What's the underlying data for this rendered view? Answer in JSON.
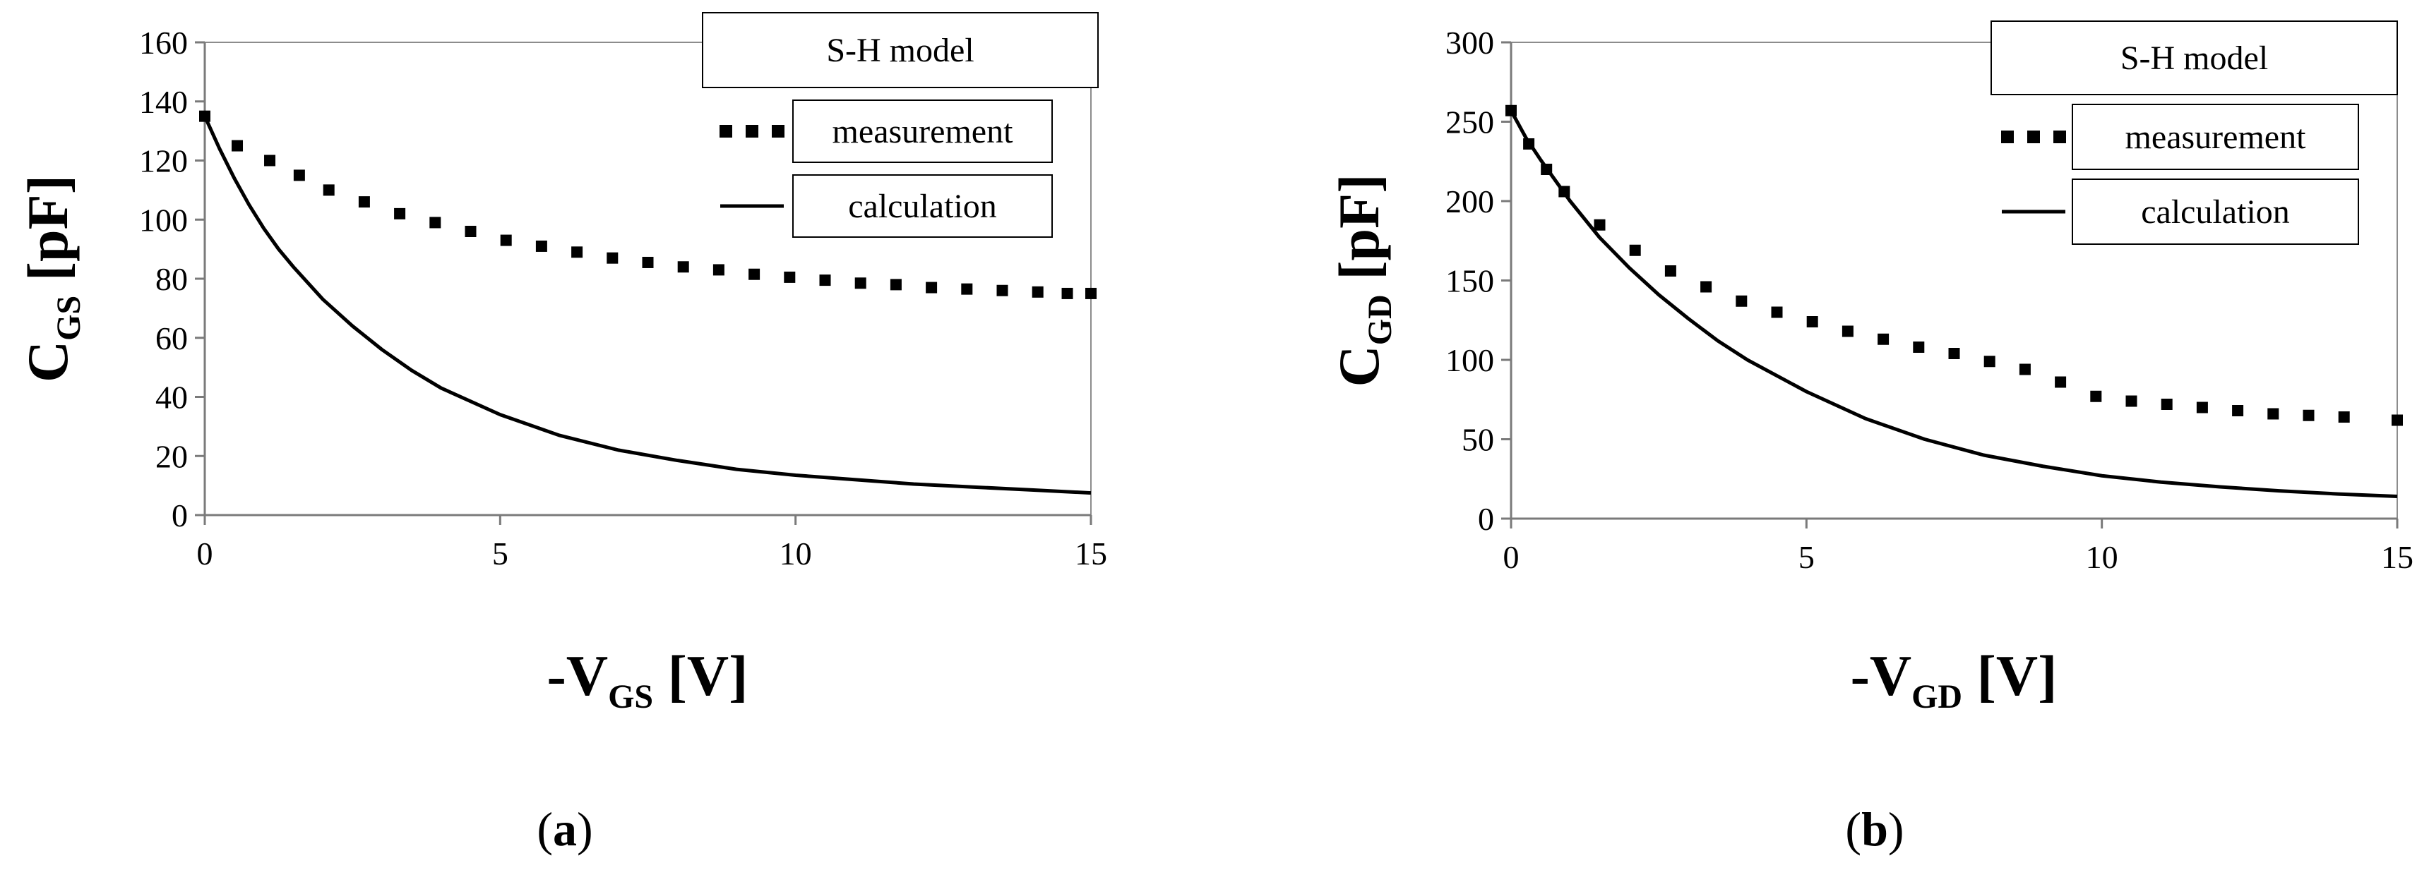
{
  "chart_data": [
    {
      "type": "line",
      "panel_label": "a",
      "title": "",
      "xlabel": {
        "main": "-V",
        "sub": "GS",
        "unit": " [V]"
      },
      "ylabel": {
        "main": "C",
        "sub": "GS",
        "unit": " [pF]"
      },
      "xlim": [
        0,
        15
      ],
      "ylim": [
        0,
        160
      ],
      "xticks": [
        "0",
        "5",
        "10",
        "15"
      ],
      "yticks": [
        "0",
        "20",
        "40",
        "60",
        "80",
        "100",
        "120",
        "140",
        "160"
      ],
      "grid": false,
      "legend": {
        "title": "S-H model",
        "position": "top-right",
        "entries": [
          "measurement",
          "calculation"
        ]
      },
      "series": [
        {
          "name": "measurement",
          "style": "square-markers",
          "x": [
            0,
            0.55,
            1.1,
            1.6,
            2.1,
            2.7,
            3.3,
            3.9,
            4.5,
            5.1,
            5.7,
            6.3,
            6.9,
            7.5,
            8.1,
            8.7,
            9.3,
            9.9,
            10.5,
            11.1,
            11.7,
            12.3,
            12.9,
            13.5,
            14.1,
            14.6,
            15
          ],
          "y": [
            135,
            125,
            120,
            115,
            110,
            106,
            102,
            99,
            96,
            93,
            91,
            89,
            87,
            85.5,
            84,
            83,
            81.5,
            80.5,
            79.5,
            78.5,
            78,
            77,
            76.5,
            76,
            75.5,
            75,
            75
          ]
        },
        {
          "name": "calculation",
          "style": "solid-line",
          "x": [
            0,
            0.25,
            0.5,
            0.75,
            1,
            1.25,
            1.5,
            2,
            2.5,
            3,
            3.5,
            4,
            5,
            6,
            7,
            8,
            9,
            10,
            11,
            12,
            13,
            14,
            15
          ],
          "y": [
            135,
            124,
            114,
            105,
            97,
            90,
            84,
            73,
            64,
            56,
            49,
            43,
            34,
            27,
            22,
            18.5,
            15.5,
            13.5,
            12,
            10.5,
            9.5,
            8.5,
            7.5
          ]
        }
      ]
    },
    {
      "type": "line",
      "panel_label": "b",
      "title": "",
      "xlabel": {
        "main": "-V",
        "sub": "GD",
        "unit": " [V]"
      },
      "ylabel": {
        "main": "C",
        "sub": "GD",
        "unit": " [pF]"
      },
      "xlim": [
        0,
        15
      ],
      "ylim": [
        0,
        300
      ],
      "xticks": [
        "0",
        "5",
        "10",
        "15"
      ],
      "yticks": [
        "0",
        "50",
        "100",
        "150",
        "200",
        "250",
        "300"
      ],
      "grid": false,
      "legend": {
        "title": "S-H model",
        "position": "top-right",
        "entries": [
          "measurement",
          "calculation"
        ]
      },
      "series": [
        {
          "name": "measurement",
          "style": "square-markers",
          "x": [
            0,
            0.3,
            0.6,
            0.9,
            1.5,
            2.1,
            2.7,
            3.3,
            3.9,
            4.5,
            5.1,
            5.7,
            6.3,
            6.9,
            7.5,
            8.1,
            8.7,
            9.3,
            9.9,
            10.5,
            11.1,
            11.7,
            12.3,
            12.9,
            13.5,
            14.1,
            15
          ],
          "y": [
            257,
            236,
            220,
            206,
            185,
            169,
            156,
            146,
            137,
            130,
            124,
            118,
            113,
            108,
            104,
            99,
            94,
            86,
            77,
            74,
            72,
            70,
            68,
            66,
            65,
            64,
            62
          ]
        },
        {
          "name": "calculation",
          "style": "solid-line",
          "x": [
            0,
            0.25,
            0.5,
            0.75,
            1,
            1.5,
            2,
            2.5,
            3,
            3.5,
            4,
            5,
            6,
            7,
            8,
            9,
            10,
            11,
            12,
            13,
            14,
            15
          ],
          "y": [
            257,
            240,
            226,
            213,
            200,
            177,
            158,
            141,
            126,
            112,
            100,
            80,
            63,
            50,
            40,
            33,
            27,
            23,
            20,
            17.5,
            15.5,
            14
          ]
        }
      ]
    }
  ]
}
